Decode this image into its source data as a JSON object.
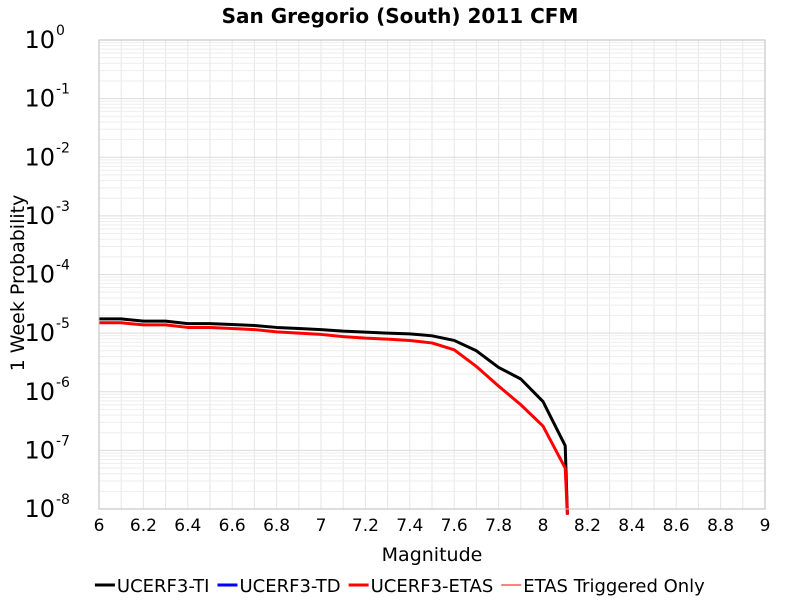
{
  "chart_data": {
    "type": "line",
    "title": "San Gregorio (South) 2011 CFM",
    "xlabel": "Magnitude",
    "ylabel": "1 Week Probability",
    "xlim": [
      6,
      9
    ],
    "ylim": [
      1e-08,
      1
    ],
    "yscale": "log",
    "grid": true,
    "legend_position": "bottom",
    "x_ticks": [
      "6",
      "6.2",
      "6.4",
      "6.6",
      "6.8",
      "7",
      "7.2",
      "7.4",
      "7.6",
      "7.8",
      "8",
      "8.2",
      "8.4",
      "8.6",
      "8.8",
      "9"
    ],
    "y_tick_base": "10",
    "y_tick_exponents": [
      "0",
      "-1",
      "-2",
      "-3",
      "-4",
      "-5",
      "-6",
      "-7",
      "-8"
    ],
    "series": [
      {
        "name": "UCERF3-TI",
        "color": "#000000",
        "width": 3,
        "x": [
          6.0,
          6.1,
          6.2,
          6.3,
          6.4,
          6.5,
          6.6,
          6.7,
          6.8,
          6.9,
          7.0,
          7.1,
          7.2,
          7.3,
          7.4,
          7.5,
          7.6,
          7.7,
          7.8,
          7.9,
          8.0,
          8.1,
          8.11
        ],
        "y": [
          1.75e-05,
          1.75e-05,
          1.6e-05,
          1.6e-05,
          1.45e-05,
          1.45e-05,
          1.4e-05,
          1.35e-05,
          1.25e-05,
          1.2e-05,
          1.15e-05,
          1.08e-05,
          1.04e-05,
          1e-05,
          9.7e-06,
          9e-06,
          7.5e-06,
          5e-06,
          2.6e-06,
          1.65e-06,
          6.8e-07,
          1.2e-07,
          8e-09
        ]
      },
      {
        "name": "UCERF3-TD",
        "color": "#0000ff",
        "width": 3,
        "x": [],
        "y": []
      },
      {
        "name": "UCERF3-ETAS",
        "color": "#ff0000",
        "width": 3,
        "x": [
          6.0,
          6.1,
          6.2,
          6.3,
          6.4,
          6.5,
          6.6,
          6.7,
          6.8,
          6.9,
          7.0,
          7.1,
          7.2,
          7.3,
          7.4,
          7.5,
          7.6,
          7.7,
          7.8,
          7.9,
          8.0,
          8.1,
          8.11
        ],
        "y": [
          1.5e-05,
          1.5e-05,
          1.38e-05,
          1.38e-05,
          1.25e-05,
          1.25e-05,
          1.2e-05,
          1.15e-05,
          1.05e-05,
          1e-05,
          9.5e-06,
          8.7e-06,
          8.2e-06,
          7.9e-06,
          7.5e-06,
          6.8e-06,
          5.2e-06,
          2.7e-06,
          1.25e-06,
          6e-07,
          2.6e-07,
          5e-08,
          8e-09
        ]
      },
      {
        "name": "ETAS Triggered Only",
        "color": "#ff0000",
        "width": 1,
        "x": [],
        "y": []
      }
    ]
  }
}
